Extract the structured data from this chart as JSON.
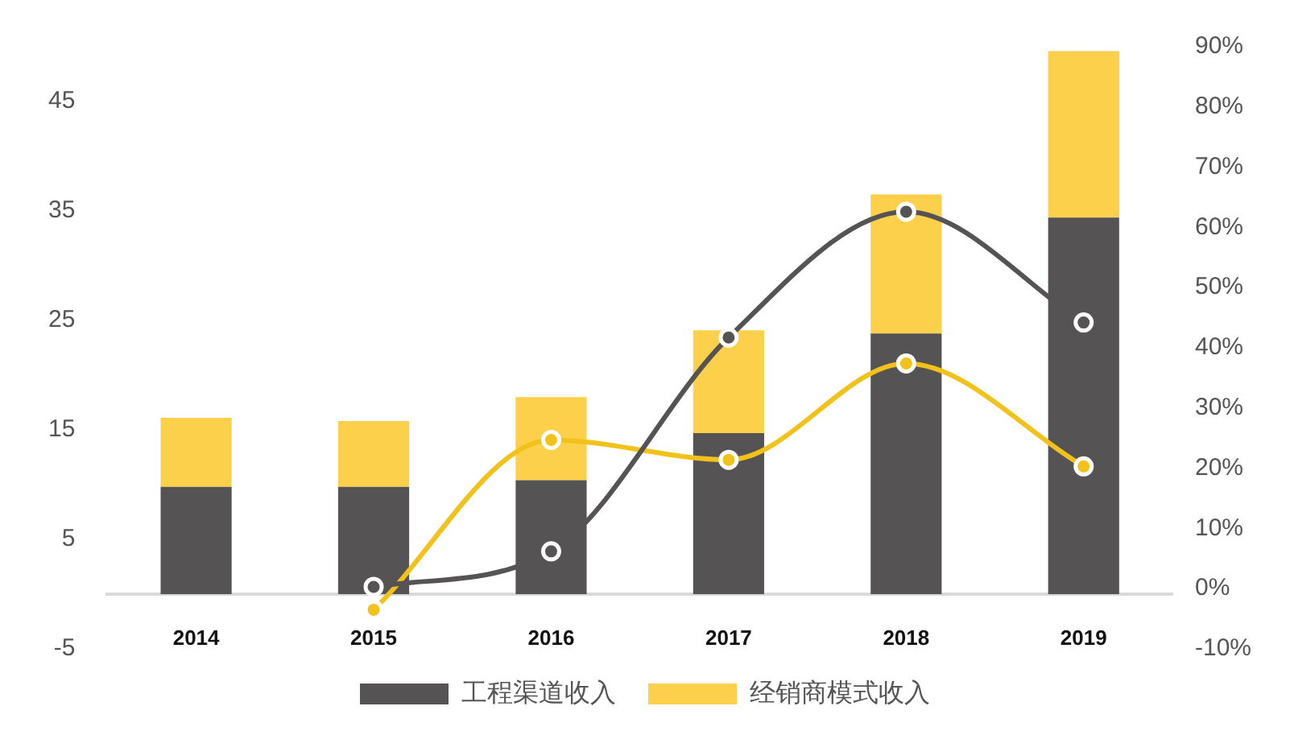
{
  "chart_data": {
    "type": "bar",
    "stacked": true,
    "categories": [
      "2014",
      "2015",
      "2016",
      "2017",
      "2018",
      "2019"
    ],
    "series": [
      {
        "name": "工程渠道收入",
        "color": "#555354",
        "values": [
          9.8,
          9.8,
          10.4,
          14.7,
          23.8,
          34.4
        ]
      },
      {
        "name": "经销商模式收入",
        "color": "#fcd04b",
        "values": [
          6.3,
          6.0,
          7.6,
          9.4,
          12.7,
          15.2
        ]
      },
      {
        "type": "line",
        "axis": "y2",
        "color": "#555354",
        "values": [
          null,
          0.3,
          6.2,
          41.7,
          62.6,
          44.2
        ]
      },
      {
        "type": "line",
        "axis": "y2",
        "color": "#f2c21a",
        "values": [
          null,
          -3.5,
          24.7,
          21.4,
          37.4,
          20.3
        ]
      }
    ],
    "ylim": [
      -5,
      50
    ],
    "yticks": [
      -5,
      5,
      15,
      25,
      35,
      45
    ],
    "y2lim": [
      -10,
      90
    ],
    "y2ticks": [
      {
        "value": -10,
        "label": "-10%"
      },
      {
        "value": 0,
        "label": "0%"
      },
      {
        "value": 10,
        "label": "10%"
      },
      {
        "value": 20,
        "label": "20%"
      },
      {
        "value": 30,
        "label": "30%"
      },
      {
        "value": 40,
        "label": "40%"
      },
      {
        "value": 50,
        "label": "50%"
      },
      {
        "value": 60,
        "label": "60%"
      },
      {
        "value": 70,
        "label": "70%"
      },
      {
        "value": 80,
        "label": "80%"
      },
      {
        "value": 90,
        "label": "90%"
      }
    ],
    "grid": false,
    "legend": "bottom",
    "marker": "circle",
    "line_style": "solid"
  }
}
